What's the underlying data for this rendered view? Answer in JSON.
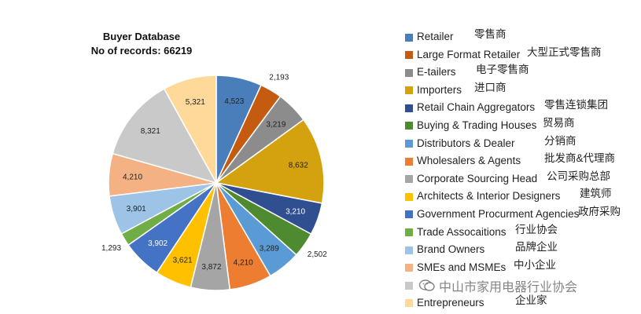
{
  "chart_data": {
    "type": "pie",
    "title": "Buyer Database",
    "subtitle": "No of records: 66219",
    "slices": [
      {
        "label": "Retailer",
        "label_zh": "零售商",
        "value": 4523,
        "value_label": "4,523",
        "color": "#4A7EBB"
      },
      {
        "label": "Large Format Retailer",
        "label_zh": "大型正式零售商",
        "value": 2193,
        "value_label": "2,193",
        "color": "#C55A11"
      },
      {
        "label": "E-tailers",
        "label_zh": "电子零售商",
        "value": 3219,
        "value_label": "3,219",
        "color": "#8C8C8C"
      },
      {
        "label": "Importers",
        "label_zh": "进口商",
        "value": 8632,
        "value_label": "8,632",
        "color": "#D4A20E"
      },
      {
        "label": "Retail Chain Aggregators",
        "label_zh": "零售连锁集团",
        "value": 3210,
        "value_label": "3,210",
        "color": "#2F4F91"
      },
      {
        "label": "Buying & Trading Houses",
        "label_zh": "贸易商",
        "value": 2502,
        "value_label": "2,502",
        "color": "#4E8A2F"
      },
      {
        "label": "Distributors & Dealer",
        "label_zh": "分销商",
        "value": 3289,
        "value_label": "3,289",
        "color": "#5B9BD5"
      },
      {
        "label": "Wholesalers & Agents",
        "label_zh": "批发商&代理商",
        "value": 4210,
        "value_label": "4,210",
        "color": "#ED7D31"
      },
      {
        "label": "Corporate Sourcing Head",
        "label_zh": "公司采购总部",
        "value": 3872,
        "value_label": "3,872",
        "color": "#A5A5A5"
      },
      {
        "label": "Architects & Interior Designers",
        "label_zh": "建筑师",
        "value": 3621,
        "value_label": "3,621",
        "color": "#FFC000"
      },
      {
        "label": "Government Procurment Agencies",
        "label_zh": "政府采购",
        "value": 3902,
        "value_label": "3,902",
        "color": "#4472C4"
      },
      {
        "label": "Trade Assocaitions",
        "label_zh": "行业协会",
        "value": 1293,
        "value_label": "1,293",
        "color": "#70AD47"
      },
      {
        "label": "Brand Owners",
        "label_zh": "品牌企业",
        "value": 3901,
        "value_label": "3,901",
        "color": "#9DC3E6"
      },
      {
        "label": "SMEs and MSMEs",
        "label_zh": "中小企业",
        "value": 4210,
        "value_label": "4,210",
        "color": "#F4B183"
      },
      {
        "label": "",
        "label_zh": "",
        "value": 8321,
        "value_label": "8,321",
        "color": "#C9C9C9"
      },
      {
        "label": "Entrepreneurs",
        "label_zh": "企业家",
        "value": 5321,
        "value_label": "5,321",
        "color": "#FFD99A"
      }
    ]
  },
  "watermark": {
    "text": "中山市家用电器行业协会"
  }
}
